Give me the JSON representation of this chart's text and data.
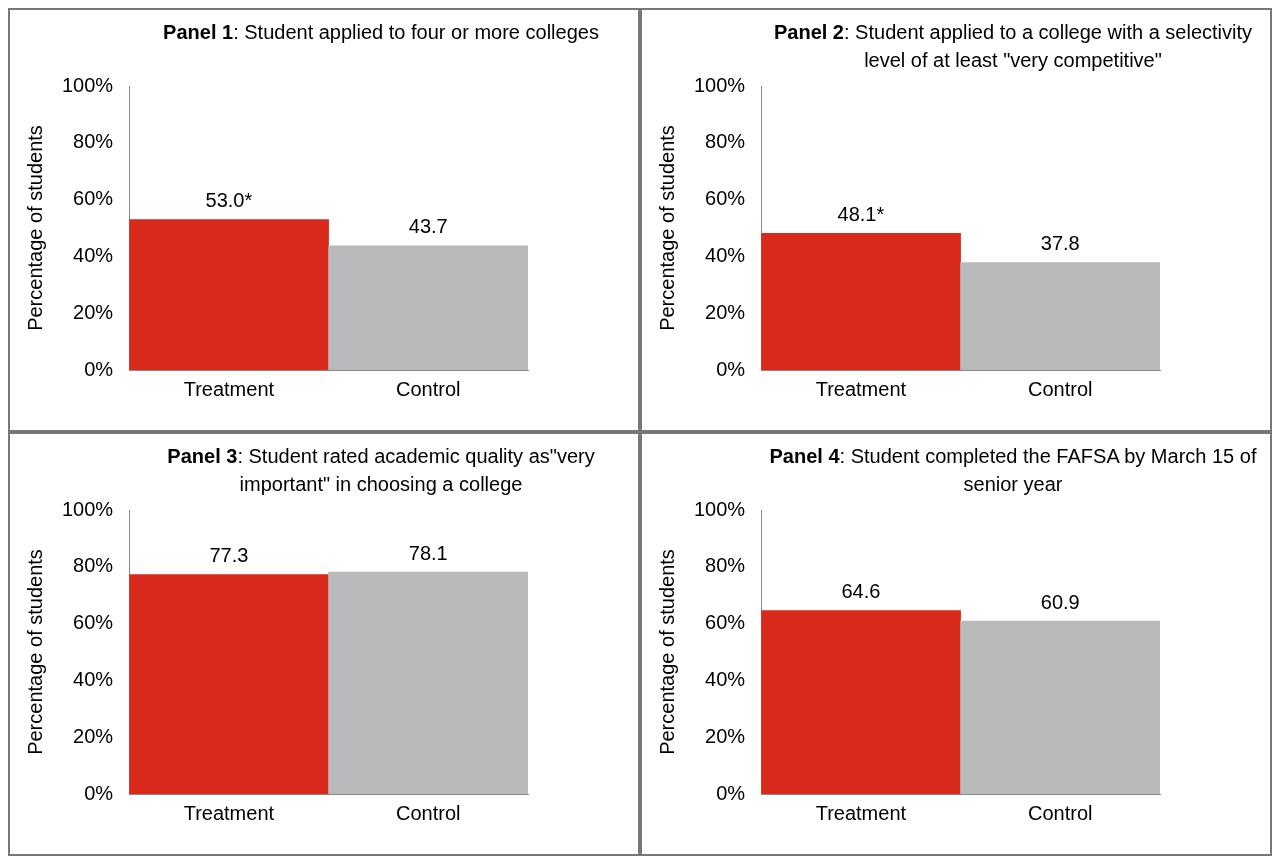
{
  "chart_data": [
    {
      "type": "bar",
      "title": "Panel 1: Student applied to four or more colleges",
      "ylabel": "Percentage of students",
      "categories": [
        "Treatment",
        "Control"
      ],
      "values": [
        53.0,
        43.7
      ],
      "colors": [
        "#d9291c",
        "#b7b9ba"
      ],
      "value_labels": [
        "53.0*",
        "43.7"
      ],
      "ylim": [
        0,
        100
      ],
      "yticks": [
        {
          "value": 0,
          "label": "0%"
        },
        {
          "value": 20,
          "label": "20%"
        },
        {
          "value": 40,
          "label": "40%"
        },
        {
          "value": 60,
          "label": "60%"
        },
        {
          "value": 80,
          "label": "80%"
        },
        {
          "value": 100,
          "label": "100%"
        }
      ],
      "grid": false,
      "legend": false
    },
    {
      "type": "bar",
      "title": "Panel 2: Student applied to a college with a selectivity level of at least \"very competitive\"",
      "ylabel": "Percentage of students",
      "categories": [
        "Treatment",
        "Control"
      ],
      "values": [
        48.1,
        37.8
      ],
      "colors": [
        "#d9291c",
        "#b7b9ba"
      ],
      "value_labels": [
        "48.1*",
        "37.8"
      ],
      "ylim": [
        0,
        100
      ],
      "yticks": [
        {
          "value": 0,
          "label": "0%"
        },
        {
          "value": 20,
          "label": "20%"
        },
        {
          "value": 40,
          "label": "40%"
        },
        {
          "value": 60,
          "label": "60%"
        },
        {
          "value": 80,
          "label": "80%"
        },
        {
          "value": 100,
          "label": "100%"
        }
      ],
      "grid": false,
      "legend": false
    },
    {
      "type": "bar",
      "title": "Panel 3: Student rated academic quality as\"very important\" in choosing a college",
      "ylabel": "Percentage of students",
      "categories": [
        "Treatment",
        "Control"
      ],
      "values": [
        77.3,
        78.1
      ],
      "colors": [
        "#d9291c",
        "#b7b9ba"
      ],
      "value_labels": [
        "77.3",
        "78.1"
      ],
      "ylim": [
        0,
        100
      ],
      "yticks": [
        {
          "value": 0,
          "label": "0%"
        },
        {
          "value": 20,
          "label": "20%"
        },
        {
          "value": 40,
          "label": "40%"
        },
        {
          "value": 60,
          "label": "60%"
        },
        {
          "value": 80,
          "label": "80%"
        },
        {
          "value": 100,
          "label": "100%"
        }
      ],
      "grid": false,
      "legend": false
    },
    {
      "type": "bar",
      "title": "Panel 4: Student completed the FAFSA by March 15 of senior year",
      "ylabel": "Percentage of students",
      "categories": [
        "Treatment",
        "Control"
      ],
      "values": [
        64.6,
        60.9
      ],
      "colors": [
        "#d9291c",
        "#b7b9ba"
      ],
      "value_labels": [
        "64.6",
        "60.9"
      ],
      "ylim": [
        0,
        100
      ],
      "yticks": [
        {
          "value": 0,
          "label": "0%"
        },
        {
          "value": 20,
          "label": "20%"
        },
        {
          "value": 40,
          "label": "40%"
        },
        {
          "value": 60,
          "label": "60%"
        },
        {
          "value": 80,
          "label": "80%"
        },
        {
          "value": 100,
          "label": "100%"
        }
      ],
      "grid": false,
      "legend": false
    }
  ]
}
